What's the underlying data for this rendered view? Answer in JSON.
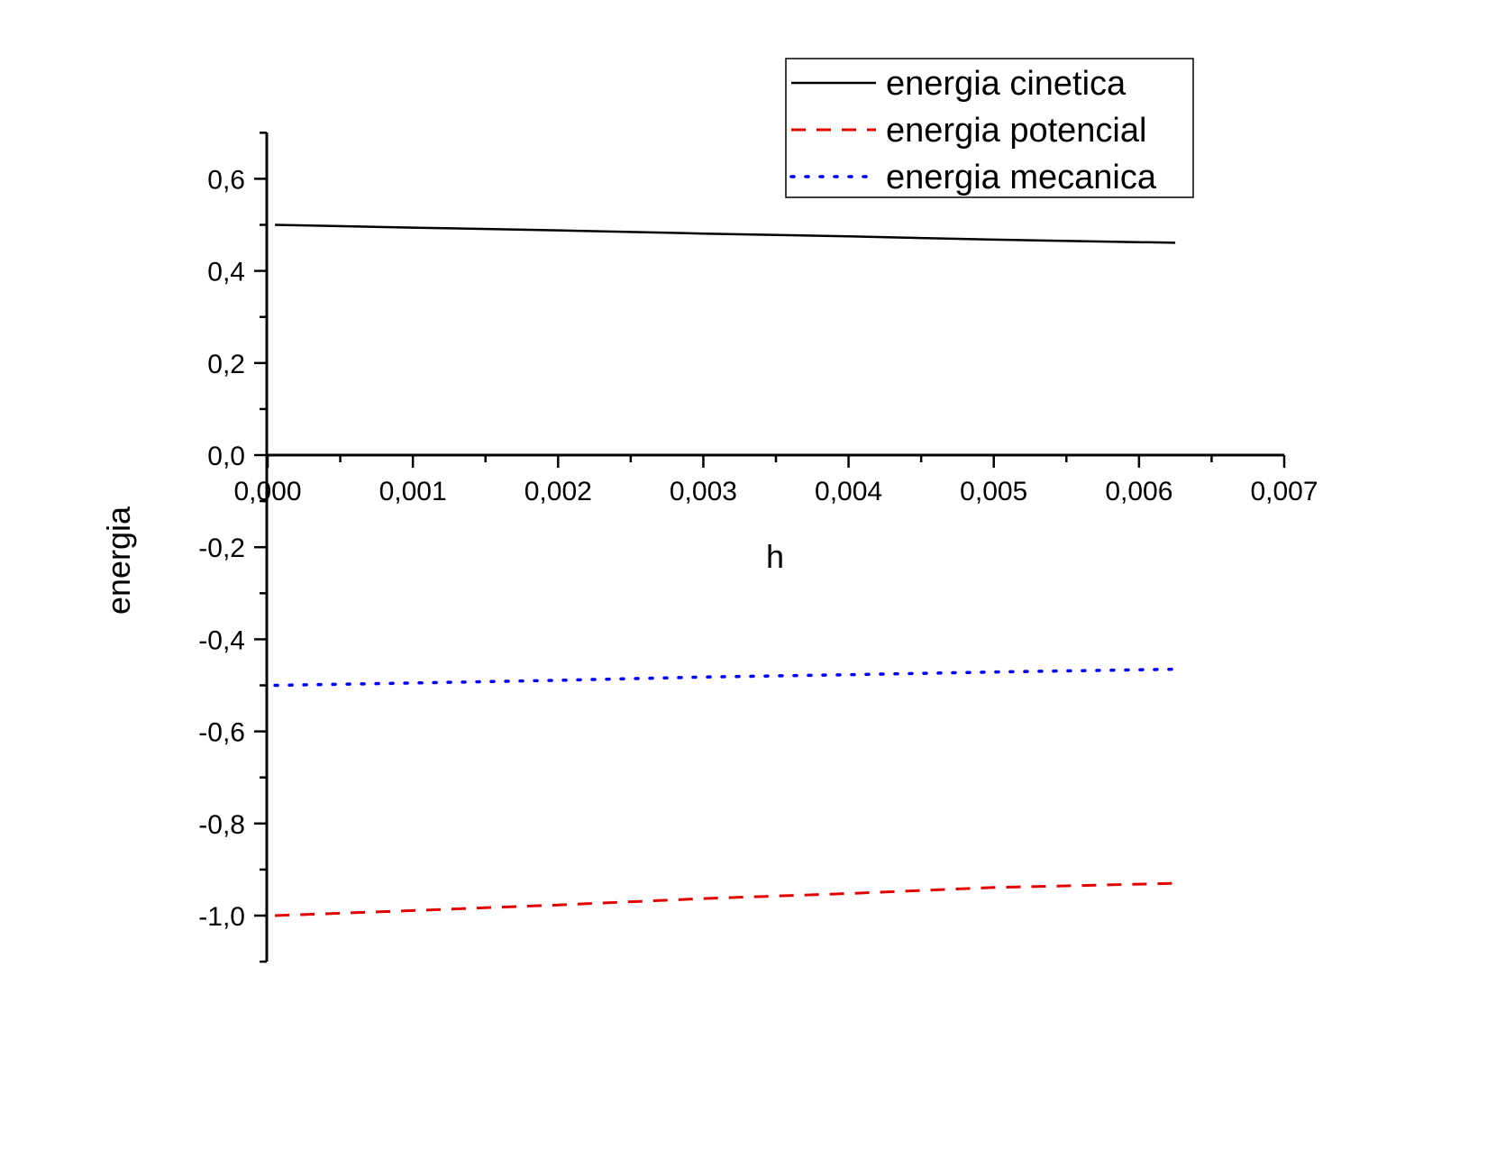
{
  "chart_data": {
    "type": "line",
    "xlabel": "h",
    "ylabel": "energia",
    "xlim": [
      0,
      0.007
    ],
    "ylim": [
      -1.1,
      0.7
    ],
    "x_ticks": [
      0,
      0.001,
      0.002,
      0.003,
      0.004,
      0.005,
      0.006,
      0.007
    ],
    "x_tick_labels": [
      "0,000",
      "0,001",
      "0,002",
      "0,003",
      "0,004",
      "0,005",
      "0,006",
      "0,007"
    ],
    "y_ticks": [
      0.6,
      0.4,
      0.2,
      0.0,
      -0.2,
      -0.4,
      -0.6,
      -0.8,
      -1.0
    ],
    "y_tick_labels": [
      "0,6",
      "0,4",
      "0,2",
      "0,0",
      "-0,2",
      "-0,4",
      "-0,6",
      "-0,8",
      "-1,0"
    ],
    "legend_position": "top-right",
    "grid": false,
    "series": [
      {
        "name": "energia cinetica",
        "color": "#000000",
        "style": "solid",
        "x": [
          5e-05,
          0.001,
          0.002,
          0.003,
          0.004,
          0.005,
          0.00625
        ],
        "y": [
          0.5,
          0.494,
          0.488,
          0.481,
          0.475,
          0.468,
          0.461
        ]
      },
      {
        "name": "energia potencial",
        "color": "#e00000",
        "style": "dashed",
        "x": [
          5e-05,
          0.001,
          0.002,
          0.003,
          0.004,
          0.005,
          0.00625
        ],
        "y": [
          -1.0,
          -0.989,
          -0.977,
          -0.963,
          -0.952,
          -0.939,
          -0.93
        ]
      },
      {
        "name": "energia mecanica",
        "color": "#0000e0",
        "style": "dotted",
        "x": [
          5e-05,
          0.001,
          0.002,
          0.003,
          0.004,
          0.005,
          0.00625
        ],
        "y": [
          -0.5,
          -0.495,
          -0.489,
          -0.482,
          -0.477,
          -0.471,
          -0.465
        ]
      }
    ]
  }
}
